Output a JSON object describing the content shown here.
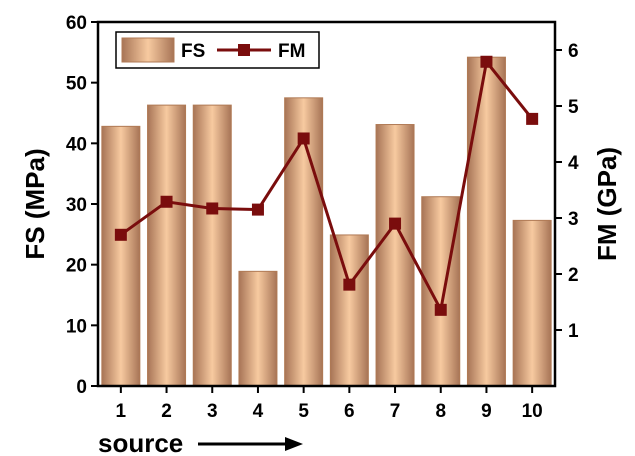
{
  "chart_data": {
    "type": "bar",
    "categories": [
      "1",
      "2",
      "3",
      "4",
      "5",
      "6",
      "7",
      "8",
      "9",
      "10"
    ],
    "xlabel": "source",
    "ylabel_left": "FS (MPa)",
    "ylabel_right": "FM (GPa)",
    "ylim_left": [
      0,
      60
    ],
    "ylim_right": [
      0,
      6.5
    ],
    "yticks_left": [
      0,
      10,
      20,
      30,
      40,
      50,
      60
    ],
    "yticks_right": [
      1,
      2,
      3,
      4,
      5,
      6
    ],
    "grid": false,
    "legend_position": "top-left",
    "series": [
      {
        "name": "FS",
        "type": "bar",
        "axis": "left",
        "values": [
          42.8,
          46.3,
          46.3,
          18.9,
          47.5,
          24.9,
          43.1,
          31.2,
          54.2,
          27.3
        ]
      },
      {
        "name": "FM",
        "type": "line",
        "axis": "right",
        "values": [
          2.7,
          3.29,
          3.17,
          3.15,
          4.42,
          1.81,
          2.9,
          1.36,
          5.79,
          4.77
        ]
      }
    ],
    "colors": {
      "bar_edge": "#b07a55",
      "bar_light": "#f7caa0",
      "bar_dark": "#a77456",
      "line": "#7a0d0d"
    }
  }
}
